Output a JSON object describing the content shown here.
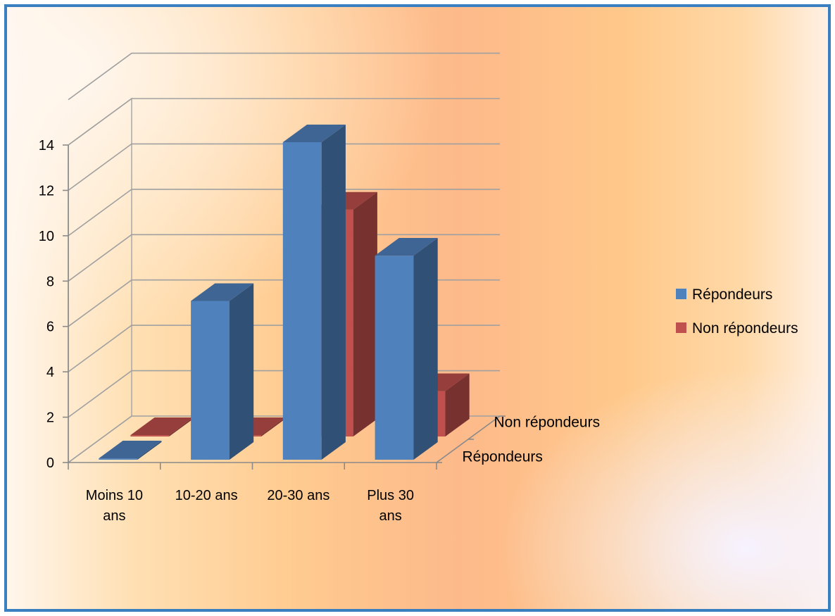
{
  "chart_data": {
    "type": "bar",
    "style": "3d-clustered-column",
    "categories": [
      [
        "Moins 10",
        "ans"
      ],
      [
        "10-20 ans"
      ],
      [
        "20-30 ans"
      ],
      [
        "Plus 30",
        "ans"
      ]
    ],
    "series": [
      {
        "name": "Répondeurs",
        "values": [
          0,
          7,
          14,
          9
        ],
        "color": "#4F81BD"
      },
      {
        "name": "Non répondeurs",
        "values": [
          0,
          0,
          10,
          2
        ],
        "color": "#C0504D"
      }
    ],
    "y_ticks": [
      "0",
      "2",
      "4",
      "6",
      "8",
      "10",
      "12",
      "14"
    ],
    "ylim": [
      0,
      14
    ],
    "depth_labels": [
      "Non répondeurs",
      "Répondeurs"
    ],
    "grid": true,
    "legend_position": "right",
    "title": "",
    "xlabel": "",
    "ylabel": ""
  }
}
